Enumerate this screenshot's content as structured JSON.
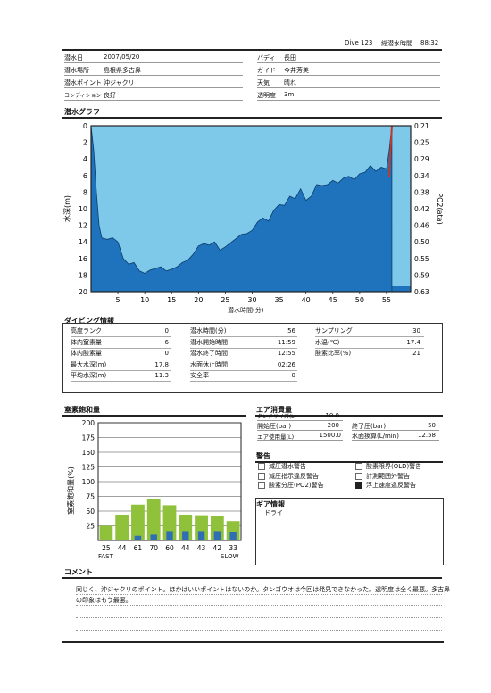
{
  "header": {
    "dive_no": "Dive 123",
    "total_label": "総潜水時間",
    "total_value": "88:32"
  },
  "info": {
    "date_label": "潜水日",
    "date": "2007/05/20",
    "buddy_label": "バディ",
    "buddy": "長田",
    "place_label": "潜水場所",
    "place": "島根県多古鼻",
    "guide_label": "ガイド",
    "guide": "今井芳美",
    "point_label": "潜水ポイント",
    "point": "沖ジャクリ",
    "weather_label": "天気",
    "weather": "晴れ",
    "condition_label": "コンディション",
    "condition": "良好",
    "visibility_label": "透明度",
    "visibility": "3m"
  },
  "graph": {
    "title": "潜水グラフ",
    "ylabel": "水深(m)",
    "xlabel": "潜水時間(分)",
    "y2label": "PO2(ata)",
    "yticks": [
      "0",
      "2",
      "4",
      "6",
      "8",
      "10",
      "12",
      "14",
      "16",
      "18",
      "20"
    ],
    "xticks": [
      "5",
      "10",
      "15",
      "20",
      "25",
      "30",
      "35",
      "40",
      "45",
      "50",
      "55"
    ],
    "y2ticks": [
      "0.21",
      "0.25",
      "0.29",
      "0.34",
      "0.38",
      "0.42",
      "0.46",
      "0.50",
      "0.55",
      "0.59",
      "0.63"
    ]
  },
  "chart_data": [
    {
      "type": "area",
      "title": "潜水グラフ",
      "xlabel": "潜水時間(分)",
      "ylabel": "水深(m)",
      "y2label": "PO2(ata)",
      "xlim": [
        0,
        59.5
      ],
      "ylim": [
        20,
        0
      ],
      "y2lim": [
        0.21,
        0.63
      ],
      "x": [
        0,
        0.5,
        1,
        1.5,
        2,
        3,
        4,
        5,
        6,
        7,
        8,
        9,
        10,
        11,
        12,
        13,
        14,
        15,
        16,
        17,
        18,
        19,
        20,
        21,
        22,
        23,
        24,
        25,
        26,
        27,
        28,
        29,
        30,
        31,
        32,
        33,
        34,
        35,
        36,
        37,
        38,
        39,
        40,
        41,
        42,
        43,
        44,
        45,
        46,
        47,
        48,
        49,
        50,
        51,
        52,
        53,
        54,
        55,
        55.5,
        56
      ],
      "depth": [
        0,
        3,
        8,
        12,
        13.5,
        13.7,
        13.5,
        14.0,
        16.0,
        16.7,
        16.5,
        17.5,
        17.8,
        17.4,
        17.2,
        17.0,
        17.5,
        17.3,
        17.0,
        16.5,
        16.2,
        15.5,
        14.5,
        14.2,
        14.4,
        14.0,
        15.0,
        14.6,
        14.1,
        13.6,
        13.1,
        13.0,
        12.6,
        11.6,
        11.1,
        11.5,
        10.2,
        9.5,
        9.6,
        8.5,
        8.8,
        7.6,
        9.0,
        8.5,
        7.1,
        7.2,
        7.1,
        6.6,
        6.9,
        6.3,
        6.1,
        6.5,
        5.8,
        5.6,
        4.8,
        5.5,
        5.0,
        5.2,
        3.0,
        0
      ],
      "po2_line": [
        [
          55.5,
          0.34
        ],
        [
          56,
          0.21
        ]
      ]
    },
    {
      "type": "bar",
      "title": "窒素飽和量",
      "ylabel": "窒素飽和量(%)",
      "categories": [
        "25",
        "44",
        "61",
        "70",
        "60",
        "44",
        "43",
        "42",
        "33"
      ],
      "values": [
        25,
        44,
        61,
        70,
        60,
        44,
        43,
        42,
        33
      ],
      "secondary_values": [
        0,
        0,
        8,
        10,
        16,
        16,
        16,
        16,
        15
      ],
      "ylim": [
        0,
        200
      ],
      "yticks": [
        25,
        50,
        75,
        100,
        125,
        150,
        175,
        200
      ],
      "xlabel_left": "FAST",
      "xlabel_right": "SLOW",
      "colors": {
        "primary": "#8fc13a",
        "secondary": "#2f6db5"
      }
    }
  ],
  "diving": {
    "title": "ダイビング情報",
    "col1": [
      {
        "label": "高度ランク",
        "value": "0"
      },
      {
        "label": "体内窒素量",
        "value": "6"
      },
      {
        "label": "体内酸素量",
        "value": "0"
      },
      {
        "label": "最大水深(m)",
        "value": "17.8"
      },
      {
        "label": "平均水深(m)",
        "value": "11.3"
      }
    ],
    "col2": [
      {
        "label": "潜水時間(分)",
        "value": "56"
      },
      {
        "label": "潜水開始時間",
        "value": "11:59"
      },
      {
        "label": "潜水終了時間",
        "value": "12:55"
      },
      {
        "label": "水面休止時間",
        "value": "02:26"
      },
      {
        "label": "安全率",
        "value": "0"
      }
    ],
    "col3": [
      {
        "label": "サンプリング",
        "value": "30"
      },
      {
        "label": "水温(℃)",
        "value": "17.4"
      },
      {
        "label": "酸素比率(%)",
        "value": "21"
      }
    ]
  },
  "nitrogen": {
    "title": "窒素飽和量",
    "ylabel": "窒素飽和量(%)",
    "fast": "FAST",
    "slow": "SLOW"
  },
  "air": {
    "title": "エア消費量",
    "tank_label": "タンクサイズ(L)",
    "tank": "10.0",
    "start_label": "開始圧(bar)",
    "start": "200",
    "end_label": "終了圧(bar)",
    "end": "50",
    "used_label": "エア使用量(L)",
    "used": "1500.0",
    "surface_label": "水面換算(L/min)",
    "surface": "12.58"
  },
  "warnings": {
    "title": "警告",
    "items": [
      {
        "label": "減圧潜水警告",
        "on": false
      },
      {
        "label": "酸素限界(OLD)警告",
        "on": false
      },
      {
        "label": "減圧指示違反警告",
        "on": false
      },
      {
        "label": "計測範囲外警告",
        "on": false
      },
      {
        "label": "酸素分圧(PO2)警告",
        "on": false
      },
      {
        "label": "浮上速度違反警告",
        "on": true
      }
    ]
  },
  "gear": {
    "title": "ギア情報",
    "item": "ドライ"
  },
  "comment": {
    "title": "コメント",
    "line1": "同じく、沖ジャクリのポイント。ほかはいいポイントはないのか。タンゴウオは今回は発見できなかった。透明度は全く最悪。多古鼻",
    "line2": "の印象はもう最悪。"
  },
  "colors": {
    "water": "#7ec8ea",
    "bottom": "#1f73bc",
    "po2": "#c0392b",
    "frame": "#222"
  }
}
